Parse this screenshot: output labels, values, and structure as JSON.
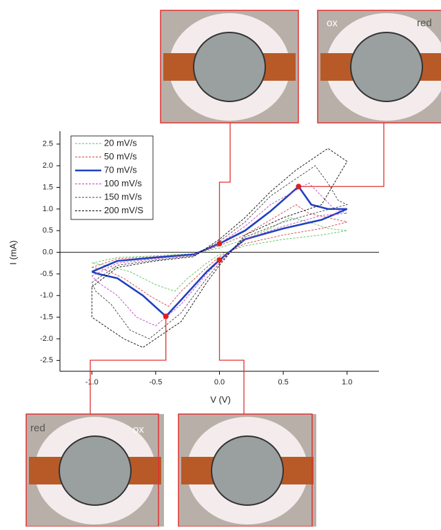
{
  "chart_data": {
    "type": "line",
    "x_label": "V (V)",
    "y_label": "I (mA)",
    "xlim": [
      -1.25,
      1.25
    ],
    "ylim": [
      -2.75,
      2.8
    ],
    "xticks": [
      {
        "value": -1,
        "label": "-1.0"
      },
      -0.5,
      {
        "value": 0,
        "label": "0.0"
      },
      0.5,
      {
        "value": 1,
        "label": "1.0"
      }
    ],
    "yticks": [
      2.5,
      {
        "value": 2,
        "label": "2.0"
      },
      1.5,
      {
        "value": 1,
        "label": "1.0"
      },
      0.5,
      {
        "value": 0,
        "label": "0.0"
      },
      -0.5,
      {
        "value": -1,
        "label": "-1.0"
      },
      -1.5,
      {
        "value": -2,
        "label": "-2.0"
      },
      -2.5
    ],
    "legend": "upper left",
    "series": [
      {
        "name": "20 mV/s",
        "color": "#55c455",
        "dashed": true,
        "x": [
          -1.0,
          -0.8,
          -0.5,
          -0.2,
          0,
          0.2,
          0.4,
          0.55,
          0.7,
          0.85,
          1.0,
          0.8,
          0.5,
          0.2,
          0,
          -0.1,
          -0.25,
          -0.35,
          -0.5,
          -0.7,
          -0.9,
          -1.0
        ],
        "values": [
          -0.25,
          -0.12,
          -0.08,
          -0.03,
          0.1,
          0.3,
          0.55,
          0.8,
          0.7,
          0.55,
          0.5,
          0.4,
          0.3,
          0.15,
          -0.05,
          -0.25,
          -0.6,
          -0.9,
          -0.75,
          -0.45,
          -0.3,
          -0.25
        ]
      },
      {
        "name": "50 mV/s",
        "color": "#d04040",
        "dashed": true,
        "x": [
          -1.0,
          -0.8,
          -0.5,
          -0.2,
          0,
          0.2,
          0.4,
          0.6,
          0.7,
          0.85,
          1.0,
          0.8,
          0.5,
          0.2,
          0,
          -0.1,
          -0.3,
          -0.4,
          -0.55,
          -0.75,
          -0.9,
          -1.0
        ],
        "values": [
          -0.35,
          -0.15,
          -0.1,
          -0.04,
          0.15,
          0.4,
          0.75,
          1.1,
          0.9,
          0.8,
          0.7,
          0.55,
          0.4,
          0.2,
          -0.1,
          -0.35,
          -0.9,
          -1.25,
          -1.0,
          -0.6,
          -0.4,
          -0.35
        ]
      },
      {
        "name": "70 mV/s",
        "color": "#2040c0",
        "dashed": false,
        "x": [
          -1.0,
          -0.8,
          -0.5,
          -0.2,
          0,
          0.2,
          0.4,
          0.62,
          0.72,
          0.85,
          1.0,
          0.8,
          0.5,
          0.2,
          0,
          -0.1,
          -0.3,
          -0.42,
          -0.6,
          -0.8,
          -0.95,
          -1.0
        ],
        "values": [
          -0.45,
          -0.2,
          -0.12,
          -0.05,
          0.2,
          0.5,
          0.95,
          1.52,
          1.1,
          1.0,
          1.0,
          0.75,
          0.55,
          0.3,
          -0.18,
          -0.45,
          -1.1,
          -1.48,
          -1.0,
          -0.6,
          -0.5,
          -0.45
        ]
      },
      {
        "name": "100 mV/s",
        "color": "#c040c0",
        "dashed": true,
        "x": [
          -1.0,
          -0.8,
          -0.5,
          -0.2,
          0,
          0.2,
          0.4,
          0.7,
          0.8,
          0.9,
          1.0,
          0.8,
          0.5,
          0.2,
          0,
          -0.1,
          -0.3,
          -0.5,
          -0.65,
          -0.8,
          -0.95,
          -1.0
        ],
        "values": [
          -0.55,
          -0.25,
          -0.15,
          -0.06,
          0.2,
          0.6,
          1.1,
          1.6,
          1.3,
          1.0,
          0.9,
          0.85,
          0.6,
          0.3,
          -0.2,
          -0.5,
          -1.2,
          -1.7,
          -1.5,
          -1.0,
          -0.7,
          -0.55
        ]
      },
      {
        "name": "150 mV/s",
        "color": "#404040",
        "dashed": true,
        "x": [
          -1.0,
          -0.8,
          -0.5,
          -0.2,
          0,
          0.2,
          0.4,
          0.75,
          0.85,
          0.93,
          1.0,
          0.8,
          0.5,
          0.2,
          0,
          -0.1,
          -0.3,
          -0.55,
          -0.7,
          -0.85,
          -0.97,
          -1.0
        ],
        "values": [
          -0.7,
          -0.3,
          -0.18,
          -0.08,
          0.25,
          0.7,
          1.3,
          2.0,
          1.6,
          1.2,
          1.1,
          0.95,
          0.7,
          0.35,
          -0.25,
          -0.6,
          -1.4,
          -2.0,
          -1.8,
          -1.2,
          -0.9,
          -0.7
        ]
      },
      {
        "name": "200 mV/S",
        "color": "#000000",
        "dashed": true,
        "x": [
          -1.0,
          -0.8,
          -0.5,
          -0.2,
          0,
          0.2,
          0.4,
          0.6,
          0.85,
          0.95,
          1.0,
          0.8,
          0.5,
          0.2,
          0,
          -0.1,
          -0.3,
          -0.6,
          -0.75,
          -0.9,
          -1.0,
          -1.0
        ],
        "values": [
          -0.8,
          -0.35,
          -0.2,
          -0.1,
          0.3,
          0.8,
          1.4,
          1.9,
          2.4,
          2.2,
          2.1,
          1.1,
          0.8,
          0.4,
          -0.3,
          -0.7,
          -1.6,
          -2.2,
          -2.0,
          -1.7,
          -1.5,
          -0.8
        ]
      }
    ],
    "markers": {
      "color": "#e02020",
      "x": [
        0,
        0.62,
        -0.42,
        0
      ],
      "values": [
        0.2,
        1.52,
        -1.48,
        -0.18
      ]
    },
    "photo_labels": {
      "top_right": [
        "ox",
        "red"
      ],
      "bottom_left": [
        "red",
        "ox"
      ]
    }
  }
}
